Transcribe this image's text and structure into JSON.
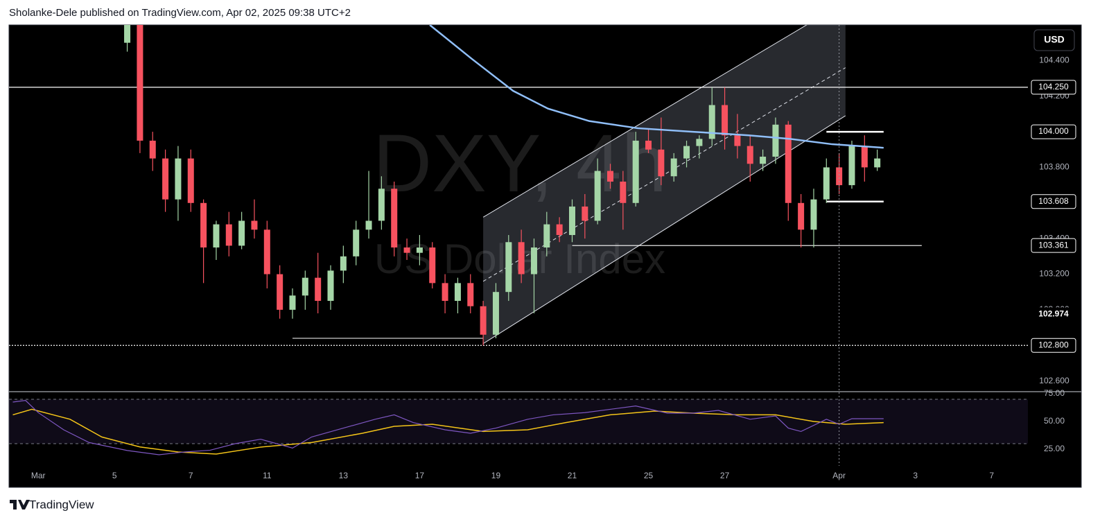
{
  "chart_data": {
    "type": "candlestick",
    "header": "Sholanke-Dele published on TradingView.com, Apr 02, 2025 09:38 UTC+2",
    "watermark": "DXY, 4h",
    "subtitle": "US Dollar Index",
    "currency": "USD",
    "brand": "TradingView",
    "up_color": "#a5d6a7",
    "down_color": "#f7525f",
    "xlim": [
      -4.6,
      155.7
    ],
    "xticks": [
      {
        "value": 0,
        "label": "Mar"
      },
      {
        "value": 12,
        "label": "5"
      },
      {
        "value": 24,
        "label": "7"
      },
      {
        "value": 36,
        "label": "11"
      },
      {
        "value": 48,
        "label": "13"
      },
      {
        "value": 60,
        "label": "17"
      },
      {
        "value": 72,
        "label": "19"
      },
      {
        "value": 84,
        "label": "21"
      },
      {
        "value": 96,
        "label": "25"
      },
      {
        "value": 108,
        "label": "27"
      },
      {
        "value": 126,
        "label": "Apr"
      },
      {
        "value": 138,
        "label": "3"
      },
      {
        "value": 150,
        "label": "7"
      }
    ],
    "ylim": [
      102.54,
      104.6
    ],
    "yticks": [
      {
        "value": 102.6,
        "label": "102.600"
      },
      {
        "value": 102.8,
        "label": "102.800"
      },
      {
        "value": 103.0,
        "label": "103.000"
      },
      {
        "value": 103.2,
        "label": "103.200"
      },
      {
        "value": 103.4,
        "label": "103.400"
      },
      {
        "value": 103.6,
        "label": "103.600"
      },
      {
        "value": 103.8,
        "label": "103.800"
      },
      {
        "value": 104.0,
        "label": "104.000"
      },
      {
        "value": 104.2,
        "label": "104.200"
      },
      {
        "value": 104.4,
        "label": "104.400"
      }
    ],
    "x": [
      14,
      16,
      18,
      20,
      22,
      24,
      26,
      28,
      30,
      32,
      34,
      36,
      38,
      40,
      42,
      44,
      46,
      48,
      50,
      52,
      54,
      56,
      58,
      60,
      62,
      64,
      66,
      68,
      70,
      72,
      74,
      76,
      78,
      80,
      82,
      84,
      86,
      88,
      90,
      92,
      94,
      96,
      98,
      100,
      102,
      104,
      106,
      108,
      110,
      112,
      114,
      116,
      118,
      120,
      122,
      124,
      126,
      128,
      130,
      132
    ],
    "open": [
      104.5,
      104.6,
      103.95,
      103.85,
      103.62,
      103.85,
      103.6,
      103.35,
      103.48,
      103.36,
      103.5,
      103.45,
      103.2,
      103.0,
      103.08,
      103.18,
      103.05,
      103.22,
      103.3,
      103.45,
      103.5,
      103.68,
      103.35,
      103.32,
      103.35,
      103.15,
      103.05,
      103.15,
      103.02,
      102.86,
      103.1,
      103.38,
      103.2,
      103.35,
      103.48,
      103.42,
      103.58,
      103.5,
      103.78,
      103.72,
      103.6,
      103.95,
      103.9,
      103.75,
      103.85,
      103.92,
      103.96,
      104.15,
      103.98,
      103.92,
      103.82,
      103.86,
      104.04,
      103.6,
      103.45,
      103.62,
      103.8,
      103.7,
      103.92,
      103.8
    ],
    "high": [
      104.7,
      104.62,
      104.0,
      103.9,
      103.92,
      103.9,
      103.62,
      103.5,
      103.55,
      103.55,
      103.62,
      103.5,
      103.25,
      103.12,
      103.22,
      103.32,
      103.25,
      103.36,
      103.5,
      103.78,
      103.75,
      103.72,
      103.4,
      103.42,
      103.38,
      103.2,
      103.18,
      103.2,
      103.05,
      103.15,
      103.42,
      103.45,
      103.4,
      103.55,
      103.52,
      103.62,
      103.65,
      103.85,
      103.82,
      103.78,
      104.0,
      104.02,
      104.08,
      103.88,
      103.95,
      103.98,
      104.25,
      104.25,
      104.1,
      103.98,
      103.9,
      104.08,
      104.06,
      103.65,
      103.68,
      103.85,
      103.88,
      103.95,
      103.98,
      103.9
    ],
    "low": [
      104.45,
      103.88,
      103.78,
      103.55,
      103.5,
      103.55,
      103.15,
      103.28,
      103.3,
      103.34,
      103.4,
      103.12,
      102.95,
      102.95,
      103.0,
      102.98,
      103.0,
      103.15,
      103.25,
      103.4,
      103.45,
      103.3,
      103.28,
      103.25,
      103.12,
      102.98,
      102.98,
      102.98,
      102.8,
      102.84,
      103.05,
      103.15,
      102.98,
      103.3,
      103.38,
      103.38,
      103.4,
      103.48,
      103.68,
      103.45,
      103.58,
      103.88,
      103.7,
      103.72,
      103.8,
      103.85,
      103.92,
      103.9,
      103.85,
      103.72,
      103.78,
      103.82,
      103.5,
      103.35,
      103.35,
      103.6,
      103.65,
      103.68,
      103.72,
      103.78
    ],
    "close": [
      104.6,
      103.95,
      103.85,
      103.62,
      103.85,
      103.6,
      103.35,
      103.48,
      103.36,
      103.5,
      103.45,
      103.2,
      103.0,
      103.08,
      103.18,
      103.05,
      103.22,
      103.3,
      103.45,
      103.5,
      103.68,
      103.35,
      103.32,
      103.35,
      103.15,
      103.05,
      103.15,
      103.02,
      102.86,
      103.1,
      103.38,
      103.2,
      103.35,
      103.48,
      103.42,
      103.58,
      103.5,
      103.78,
      103.72,
      103.6,
      103.95,
      103.9,
      103.75,
      103.85,
      103.92,
      103.96,
      104.15,
      103.98,
      103.92,
      103.82,
      103.86,
      104.04,
      103.6,
      103.45,
      103.62,
      103.8,
      103.7,
      103.92,
      103.8,
      103.85
    ],
    "ma": {
      "color": "#90bff9",
      "x": [
        61.6,
        68.2,
        74.7,
        80.2,
        86.7,
        94.3,
        103,
        111.8,
        118.3,
        124.9,
        133
      ],
      "values": [
        104.6,
        104.41,
        104.23,
        104.13,
        104.06,
        104.02,
        104.0,
        103.98,
        103.96,
        103.93,
        103.91
      ]
    },
    "channel": {
      "x": [
        70,
        127
      ],
      "lower": [
        102.81,
        104.09
      ],
      "middle": [
        103.16,
        104.36
      ],
      "upper": [
        103.52,
        104.73
      ]
    },
    "levels": [
      {
        "value": 104.25,
        "label": "104.250",
        "style": "solid"
      },
      {
        "value": 104.0,
        "label": "104.000",
        "style": "thick",
        "x": [
          124,
          133
        ]
      },
      {
        "value": 103.608,
        "label": "103.608",
        "style": "thick",
        "x": [
          124,
          133
        ]
      },
      {
        "value": 103.361,
        "label": "103.361",
        "style": "solid",
        "x": [
          84,
          139
        ]
      },
      {
        "value": 102.8,
        "label": "102.800",
        "style": "dotted"
      }
    ],
    "segments": [
      {
        "x": [
          40,
          70
        ],
        "value": 102.84
      }
    ],
    "last_price": {
      "value": 102.974,
      "label": "102.974"
    },
    "cursor_x": 126,
    "rsi": {
      "ylim": [
        8.1,
        76.9
      ],
      "yticks": [
        {
          "value": 75,
          "label": "75.00"
        },
        {
          "value": 50,
          "label": "50.00"
        },
        {
          "value": 25,
          "label": "25.00"
        }
      ],
      "bands": [
        70,
        30
      ],
      "line": {
        "color": "#7e57c2",
        "x": [
          -4,
          -2,
          0,
          4,
          8,
          14,
          19,
          23,
          27,
          31,
          35,
          40,
          43,
          48,
          53,
          56,
          59,
          64,
          68,
          72,
          77,
          81,
          86,
          90,
          94,
          99,
          103,
          107,
          112,
          116,
          118,
          120,
          124,
          126,
          128,
          133
        ],
        "values": [
          67.5,
          69,
          58,
          42.5,
          31,
          23.8,
          20,
          22.5,
          24,
          30,
          34,
          26,
          36,
          44,
          52,
          56,
          49,
          42.5,
          39.4,
          44,
          52,
          56,
          58,
          61,
          64,
          57.5,
          57.5,
          60,
          52,
          55,
          44,
          41,
          52,
          47.5,
          52.5,
          52.5
        ]
      },
      "signal": {
        "color": "#f5c518",
        "x": [
          -4,
          -1,
          5,
          10,
          16,
          22,
          28,
          35,
          43,
          51,
          56,
          62,
          70,
          77,
          83,
          90,
          97,
          103,
          110,
          116,
          122,
          127,
          133
        ],
        "values": [
          56,
          61,
          52,
          36,
          27,
          22.5,
          20.6,
          26.9,
          31,
          39.4,
          45.6,
          47.5,
          41,
          42.5,
          49,
          56,
          59.4,
          57.5,
          56,
          56,
          50,
          47.5,
          49
        ]
      }
    }
  }
}
